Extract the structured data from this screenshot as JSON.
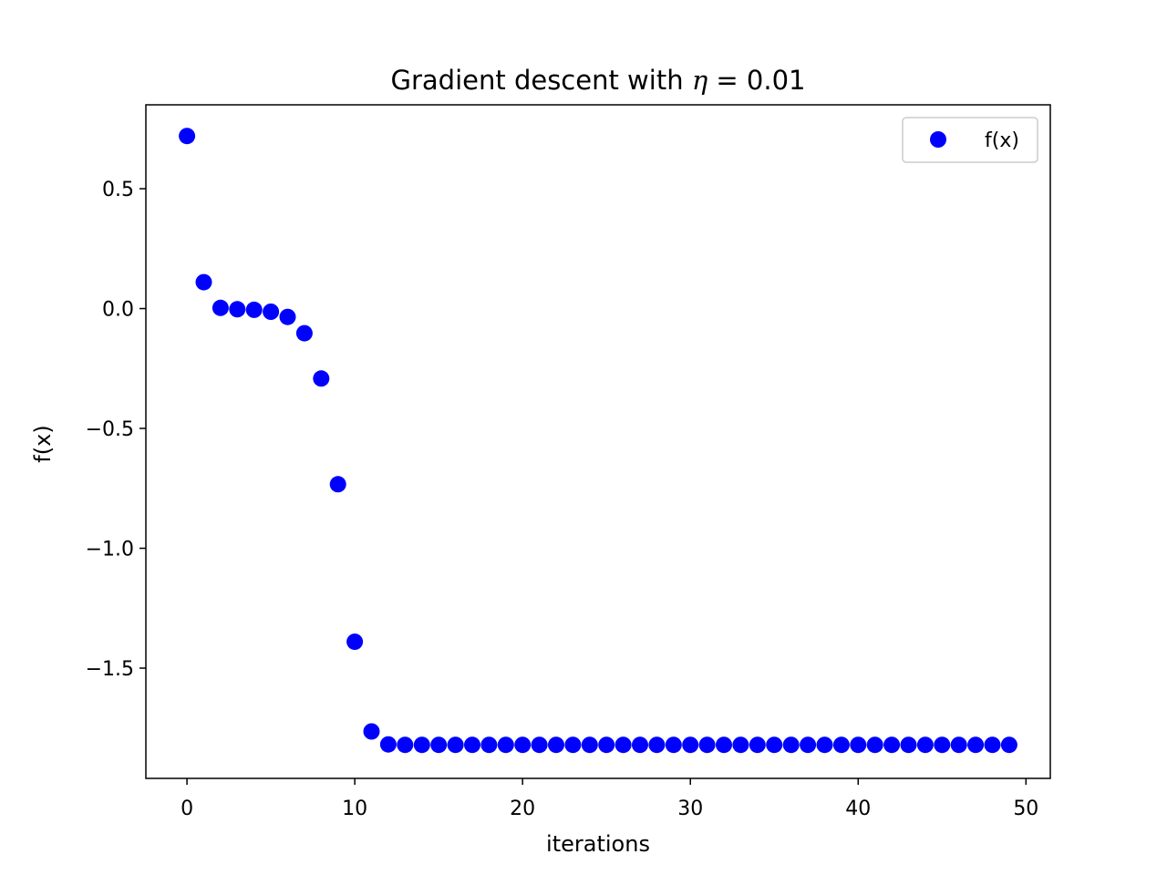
{
  "chart_data": {
    "type": "scatter",
    "title": "Gradient descent with η = 0.01",
    "title_parts": {
      "prefix": "Gradient descent with ",
      "symbol": "η",
      "suffix": " = 0.01"
    },
    "xlabel": "iterations",
    "ylabel": "f(x)",
    "xlim": [
      -2.45,
      51.45
    ],
    "ylim": [
      -1.96,
      0.85
    ],
    "xticks": [
      0,
      10,
      20,
      30,
      40,
      50
    ],
    "xtick_labels": [
      "0",
      "10",
      "20",
      "30",
      "40",
      "50"
    ],
    "yticks": [
      0.5,
      0.0,
      -0.5,
      -1.0,
      -1.5
    ],
    "ytick_labels": [
      "0.5",
      "0.0",
      "−0.5",
      "−1.0",
      "−1.5"
    ],
    "grid": false,
    "legend": {
      "position": "top-right",
      "entries": [
        "f(x)"
      ]
    },
    "series": [
      {
        "name": "f(x)",
        "color": "#0000ff",
        "marker": "circle",
        "x": [
          0,
          1,
          2,
          3,
          4,
          5,
          6,
          7,
          8,
          9,
          10,
          11,
          12,
          13,
          14,
          15,
          16,
          17,
          18,
          19,
          20,
          21,
          22,
          23,
          24,
          25,
          26,
          27,
          28,
          29,
          30,
          31,
          32,
          33,
          34,
          35,
          36,
          37,
          38,
          39,
          40,
          41,
          42,
          43,
          44,
          45,
          46,
          47,
          48,
          49
        ],
        "y": [
          0.72,
          0.11,
          0.003,
          -0.003,
          -0.005,
          -0.013,
          -0.035,
          -0.103,
          -0.292,
          -0.733,
          -1.39,
          -1.764,
          -1.818,
          -1.82,
          -1.82,
          -1.82,
          -1.82,
          -1.82,
          -1.82,
          -1.82,
          -1.82,
          -1.82,
          -1.82,
          -1.82,
          -1.82,
          -1.82,
          -1.82,
          -1.82,
          -1.82,
          -1.82,
          -1.82,
          -1.82,
          -1.82,
          -1.82,
          -1.82,
          -1.82,
          -1.82,
          -1.82,
          -1.82,
          -1.82,
          -1.82,
          -1.82,
          -1.82,
          -1.82,
          -1.82,
          -1.82,
          -1.82,
          -1.82,
          -1.82,
          -1.82
        ]
      }
    ]
  }
}
